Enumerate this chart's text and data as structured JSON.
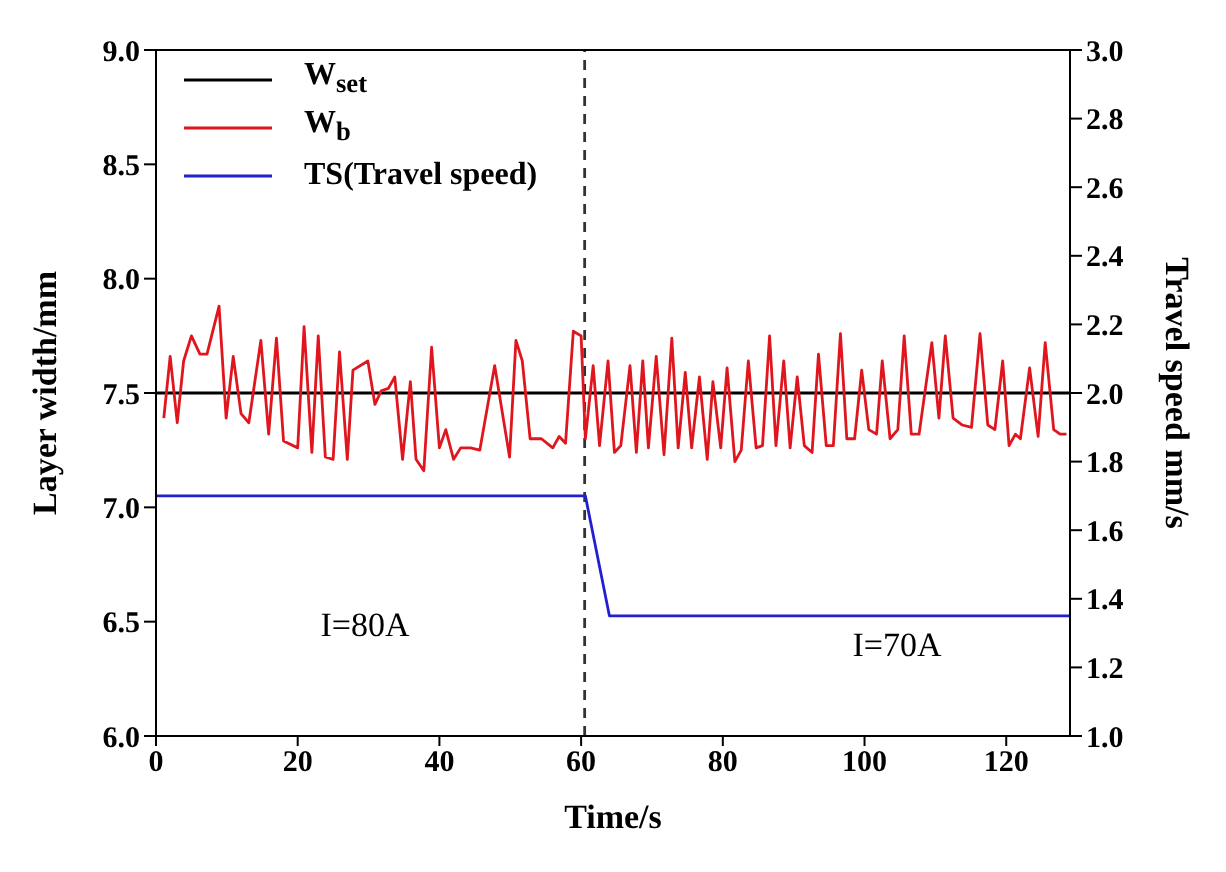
{
  "chart_data": {
    "type": "line",
    "xlabel": "Time/s",
    "ylabel": "Layer width/mm",
    "y2label": "Travel speed mm/s",
    "xlim": [
      0,
      129
    ],
    "xticks": [
      0,
      20,
      40,
      60,
      80,
      100,
      120
    ],
    "ylim": [
      6,
      9
    ],
    "yticks": [
      {
        "value": 6,
        "label": "6.0"
      },
      {
        "value": 6.5,
        "label": "6.5"
      },
      {
        "value": 7,
        "label": "7.0"
      },
      {
        "value": 7.5,
        "label": "7.5"
      },
      {
        "value": 8,
        "label": "8.0"
      },
      {
        "value": 8.5,
        "label": "8.5"
      },
      {
        "value": 9,
        "label": "9.0"
      }
    ],
    "y2lim": [
      1,
      3
    ],
    "y2ticks": [
      {
        "value": 1,
        "label": "1.0"
      },
      {
        "value": 1.2,
        "label": "1.2"
      },
      {
        "value": 1.4,
        "label": "1.4"
      },
      {
        "value": 1.6,
        "label": "1.6"
      },
      {
        "value": 1.8,
        "label": "1.8"
      },
      {
        "value": 2,
        "label": "2.0"
      },
      {
        "value": 2.2,
        "label": "2.2"
      },
      {
        "value": 2.4,
        "label": "2.4"
      },
      {
        "value": 2.6,
        "label": "2.6"
      },
      {
        "value": 2.8,
        "label": "2.8"
      },
      {
        "value": 3,
        "label": "3.0"
      }
    ],
    "legend": "top left",
    "marker": "none",
    "line_style": "solid",
    "series": [
      {
        "name": "W$_{set}$",
        "color": "#000000",
        "x": [
          0,
          129
        ],
        "values": [
          7.5,
          7.5
        ]
      },
      {
        "name": "W$_{b}$",
        "color": "#e0161e",
        "x": [
          1.1,
          2.0,
          3.0,
          3.9,
          5.0,
          6.2,
          7.2,
          8.9,
          9.9,
          10.9,
          12.0,
          13.1,
          14.8,
          15.9,
          17.0,
          18.0,
          20.0,
          20.9,
          22.0,
          22.9,
          23.9,
          25.0,
          25.9,
          27.0,
          27.8,
          29.9,
          30.9,
          31.8,
          32.8,
          33.7,
          34.8,
          35.9,
          36.7,
          37.8,
          38.9,
          40.0,
          40.9,
          42.0,
          43.0,
          44.4,
          45.7,
          47.8,
          49.9,
          50.8,
          51.7,
          52.8,
          54.4,
          56.0,
          56.9,
          57.8,
          58.9,
          60.0,
          60.6,
          61.7,
          62.6,
          63.8,
          64.7,
          65.6,
          66.9,
          67.8,
          68.7,
          69.5,
          70.6,
          71.7,
          72.8,
          73.7,
          74.7,
          75.6,
          76.7,
          77.8,
          78.6,
          79.7,
          80.6,
          81.7,
          82.6,
          83.6,
          84.7,
          85.6,
          86.6,
          87.5,
          88.6,
          89.5,
          90.5,
          91.5,
          92.6,
          93.5,
          94.6,
          95.6,
          96.6,
          97.5,
          98.6,
          99.6,
          100.6,
          101.7,
          102.5,
          103.6,
          104.7,
          105.6,
          106.6,
          107.7,
          109.5,
          110.5,
          111.4,
          112.5,
          113.8,
          115.1,
          116.3,
          117.4,
          118.4,
          119.5,
          120.4,
          121.3,
          122.0,
          123.3,
          124.5,
          125.5,
          126.7,
          127.6,
          128.5
        ],
        "values": [
          7.39,
          7.66,
          7.37,
          7.64,
          7.75,
          7.67,
          7.67,
          7.88,
          7.39,
          7.66,
          7.41,
          7.37,
          7.73,
          7.32,
          7.74,
          7.29,
          7.26,
          7.79,
          7.24,
          7.75,
          7.22,
          7.21,
          7.68,
          7.21,
          7.6,
          7.64,
          7.45,
          7.51,
          7.52,
          7.57,
          7.21,
          7.55,
          7.21,
          7.16,
          7.7,
          7.26,
          7.34,
          7.21,
          7.26,
          7.26,
          7.25,
          7.62,
          7.22,
          7.73,
          7.64,
          7.3,
          7.3,
          7.26,
          7.31,
          7.28,
          7.77,
          7.75,
          7.3,
          7.62,
          7.27,
          7.64,
          7.24,
          7.27,
          7.62,
          7.24,
          7.64,
          7.26,
          7.66,
          7.23,
          7.74,
          7.26,
          7.59,
          7.26,
          7.57,
          7.21,
          7.55,
          7.26,
          7.61,
          7.2,
          7.25,
          7.64,
          7.26,
          7.27,
          7.75,
          7.27,
          7.64,
          7.26,
          7.57,
          7.27,
          7.24,
          7.67,
          7.27,
          7.27,
          7.76,
          7.3,
          7.3,
          7.6,
          7.34,
          7.32,
          7.64,
          7.3,
          7.34,
          7.75,
          7.32,
          7.32,
          7.72,
          7.39,
          7.75,
          7.39,
          7.36,
          7.35,
          7.76,
          7.36,
          7.34,
          7.64,
          7.27,
          7.32,
          7.3,
          7.61,
          7.31,
          7.72,
          7.34,
          7.32,
          7.32
        ]
      },
      {
        "name": "TS(Travel speed)",
        "color": "#2020d0",
        "axis": "y2",
        "x": [
          0,
          60.6,
          64.0,
          129
        ],
        "values": [
          1.7,
          1.7,
          1.35,
          1.35
        ]
      }
    ],
    "ref_lines": [
      {
        "axis": "x",
        "value": 60.5,
        "color": "#333333",
        "line_style": "dashed"
      }
    ],
    "annotations": [
      "I=80A",
      "I=70A"
    ]
  }
}
